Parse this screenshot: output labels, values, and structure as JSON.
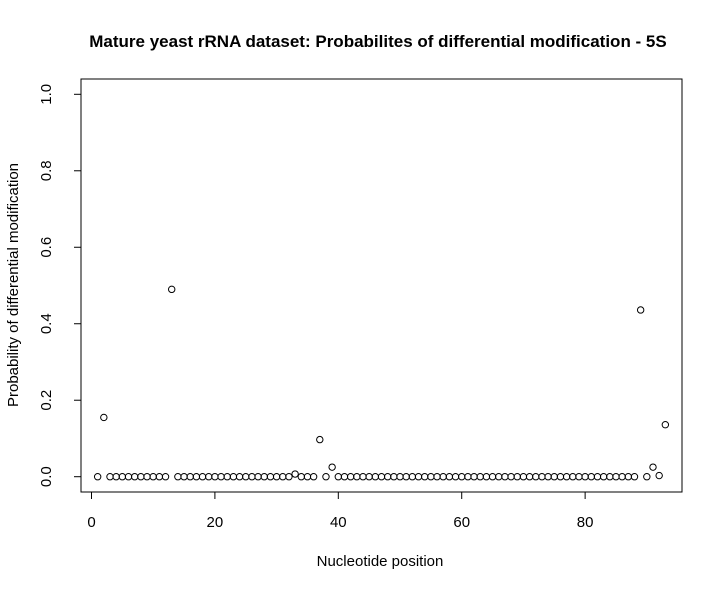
{
  "chart_data": {
    "type": "scatter",
    "title": "Mature yeast rRNA dataset: Probabilites of differential modification - 5S",
    "xlabel": "Nucleotide position",
    "ylabel": "Probability of differential modification",
    "xlim": [
      -1.7,
      95.7
    ],
    "ylim": [
      -0.04,
      1.04
    ],
    "xticks": [
      0,
      20,
      40,
      60,
      80
    ],
    "xtick_labels": [
      "0",
      "20",
      "40",
      "60",
      "80"
    ],
    "yticks": [
      0.0,
      0.2,
      0.4,
      0.6,
      0.8,
      1.0
    ],
    "ytick_labels": [
      "0.0",
      "0.2",
      "0.4",
      "0.6",
      "0.8",
      "1.0"
    ],
    "marker": "open-circle",
    "grid": false,
    "x": [
      1,
      2,
      3,
      4,
      5,
      6,
      7,
      8,
      9,
      10,
      11,
      12,
      13,
      14,
      15,
      16,
      17,
      18,
      19,
      20,
      21,
      22,
      23,
      24,
      25,
      26,
      27,
      28,
      29,
      30,
      31,
      32,
      33,
      34,
      35,
      36,
      37,
      38,
      39,
      40,
      41,
      42,
      43,
      44,
      45,
      46,
      47,
      48,
      49,
      50,
      51,
      52,
      53,
      54,
      55,
      56,
      57,
      58,
      59,
      60,
      61,
      62,
      63,
      64,
      65,
      66,
      67,
      68,
      69,
      70,
      71,
      72,
      73,
      74,
      75,
      76,
      77,
      78,
      79,
      80,
      81,
      82,
      83,
      84,
      85,
      86,
      87,
      88,
      89,
      90,
      91,
      92,
      93
    ],
    "y": [
      0.0,
      0.155,
      0.0,
      0.0,
      0.0,
      0.0,
      0.0,
      0.0,
      0.0,
      0.0,
      0.0,
      0.0,
      0.49,
      0.0,
      0.0,
      0.0,
      0.0,
      0.0,
      0.0,
      0.0,
      0.0,
      0.0,
      0.0,
      0.0,
      0.0,
      0.0,
      0.0,
      0.0,
      0.0,
      0.0,
      0.0,
      0.0,
      0.007,
      0.0,
      0.0,
      0.0,
      0.097,
      0.0,
      0.025,
      0.0,
      0.0,
      0.0,
      0.0,
      0.0,
      0.0,
      0.0,
      0.0,
      0.0,
      0.0,
      0.0,
      0.0,
      0.0,
      0.0,
      0.0,
      0.0,
      0.0,
      0.0,
      0.0,
      0.0,
      0.0,
      0.0,
      0.0,
      0.0,
      0.0,
      0.0,
      0.0,
      0.0,
      0.0,
      0.0,
      0.0,
      0.0,
      0.0,
      0.0,
      0.0,
      0.0,
      0.0,
      0.0,
      0.0,
      0.0,
      0.0,
      0.0,
      0.0,
      0.0,
      0.0,
      0.0,
      0.0,
      0.0,
      0.0,
      0.436,
      0.0,
      0.025,
      0.003,
      0.136
    ]
  }
}
